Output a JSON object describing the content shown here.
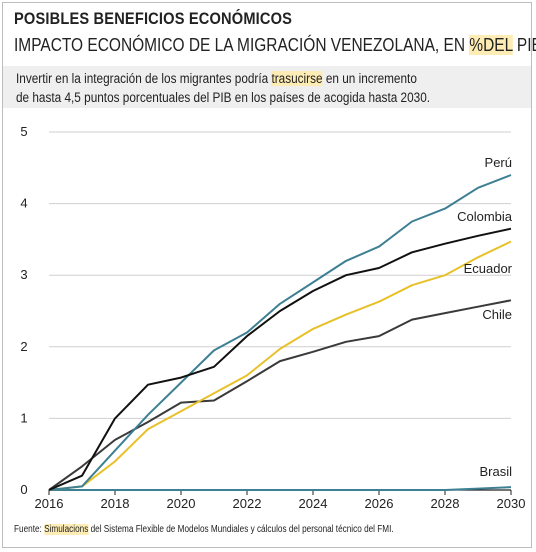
{
  "header": {
    "title": "POSIBLES BENEFICIOS ECONÓMICOS",
    "subtitle_before": "IMPACTO ECONÓMICO DE LA MIGRACIÓN VENEZOLANA, EN ",
    "subtitle_highlight": "%DEL",
    "subtitle_after": " PIB"
  },
  "description": {
    "line1_before": "Invertir en la integración de los migrantes podría ",
    "line1_highlight": "trasucirse",
    "line1_after": " en un incremento",
    "line2": "de hasta 4,5 puntos porcentuales del PIB en los países de acogida hasta 2030."
  },
  "footer": {
    "label": "Fuente: ",
    "highlight": "Simulacions",
    "text": " del Sistema Flexible de Modelos Mundiales y cálculos del personal técnico del FMI."
  },
  "chart_data": {
    "type": "line",
    "xlim": [
      2016,
      2030
    ],
    "ylim": [
      0,
      5
    ],
    "x_ticks": [
      "2016",
      "2018",
      "2020",
      "2022",
      "2024",
      "2026",
      "2028",
      "2030"
    ],
    "y_ticks": [
      "0",
      "1",
      "2",
      "3",
      "4",
      "5"
    ],
    "grid": "horizontal",
    "colors": {
      "Perú": "#3d7f93",
      "Colombia": "#111111",
      "Ecuador": "#e8c12a",
      "Chile": "#3a3a3a",
      "Brasil": "#3d7f93"
    },
    "series": [
      {
        "name": "Perú",
        "x": [
          2016,
          2017,
          2018,
          2019,
          2020,
          2021,
          2022,
          2023,
          2024,
          2025,
          2026,
          2027,
          2028,
          2029,
          2030
        ],
        "values": [
          0,
          0.05,
          0.55,
          1.05,
          1.5,
          1.95,
          2.2,
          2.6,
          2.9,
          3.2,
          3.4,
          3.75,
          3.93,
          4.22,
          4.4
        ]
      },
      {
        "name": "Colombia",
        "x": [
          2016,
          2017,
          2018,
          2019,
          2020,
          2021,
          2022,
          2023,
          2024,
          2025,
          2026,
          2027,
          2028,
          2029,
          2030
        ],
        "values": [
          0,
          0.2,
          1.0,
          1.47,
          1.57,
          1.72,
          2.15,
          2.5,
          2.78,
          3.0,
          3.1,
          3.32,
          3.44,
          3.55,
          3.65
        ]
      },
      {
        "name": "Ecuador",
        "x": [
          2016,
          2017,
          2018,
          2019,
          2020,
          2021,
          2022,
          2023,
          2024,
          2025,
          2026,
          2027,
          2028,
          2029,
          2030
        ],
        "values": [
          0,
          0.05,
          0.4,
          0.85,
          1.1,
          1.35,
          1.6,
          1.97,
          2.25,
          2.45,
          2.63,
          2.86,
          3.0,
          3.25,
          3.47
        ]
      },
      {
        "name": "Chile",
        "x": [
          2016,
          2017,
          2018,
          2019,
          2020,
          2021,
          2022,
          2023,
          2024,
          2025,
          2026,
          2027,
          2028,
          2029,
          2030
        ],
        "values": [
          0,
          0.33,
          0.7,
          0.95,
          1.22,
          1.25,
          1.52,
          1.8,
          1.93,
          2.07,
          2.15,
          2.38,
          2.47,
          2.56,
          2.65
        ]
      },
      {
        "name": "Brasil",
        "x": [
          2016,
          2017,
          2018,
          2019,
          2020,
          2021,
          2022,
          2023,
          2024,
          2025,
          2026,
          2027,
          2028,
          2029,
          2030
        ],
        "values": [
          0,
          0,
          0,
          0,
          0,
          0,
          0,
          0,
          0,
          0,
          0,
          0,
          0,
          0.02,
          0.04
        ]
      }
    ],
    "labels": [
      "Perú",
      "Colombia",
      "Ecuador",
      "Chile",
      "Brasil"
    ]
  }
}
